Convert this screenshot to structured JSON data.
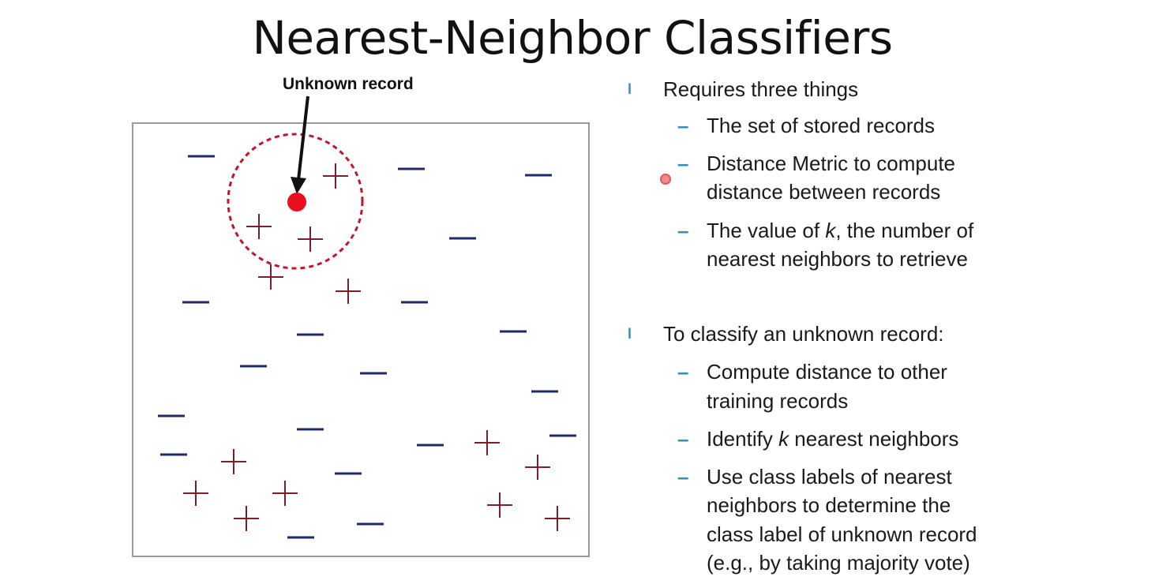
{
  "title": "Nearest-Neighbor Classifiers",
  "diagram": {
    "unknown_label": "Unknown record",
    "colors": {
      "minus": "#1f2a6e",
      "plus": "#7a1f2b",
      "query": "#e8101e",
      "circle": "#c0152a"
    }
  },
  "bullets": [
    {
      "text": "Requires three things",
      "items": [
        {
          "text": "The set of stored records"
        },
        {
          "pre": "Distance Metric to compute",
          "post": "distance between records"
        },
        {
          "pre": "The value of ",
          "k": "k",
          "post": ", the number of",
          "line2": "nearest neighbors to retrieve"
        }
      ]
    },
    {
      "text": "To classify an unknown record:",
      "items": [
        {
          "pre": "Compute distance to other",
          "line2": "training records"
        },
        {
          "pre": "Identify ",
          "k": "k",
          "post": " nearest neighbors"
        },
        {
          "pre": "Use class labels of nearest",
          "line2": "neighbors to determine the",
          "line3": "class label of unknown record",
          "line4": "(e.g., by taking majority vote)"
        }
      ]
    }
  ]
}
